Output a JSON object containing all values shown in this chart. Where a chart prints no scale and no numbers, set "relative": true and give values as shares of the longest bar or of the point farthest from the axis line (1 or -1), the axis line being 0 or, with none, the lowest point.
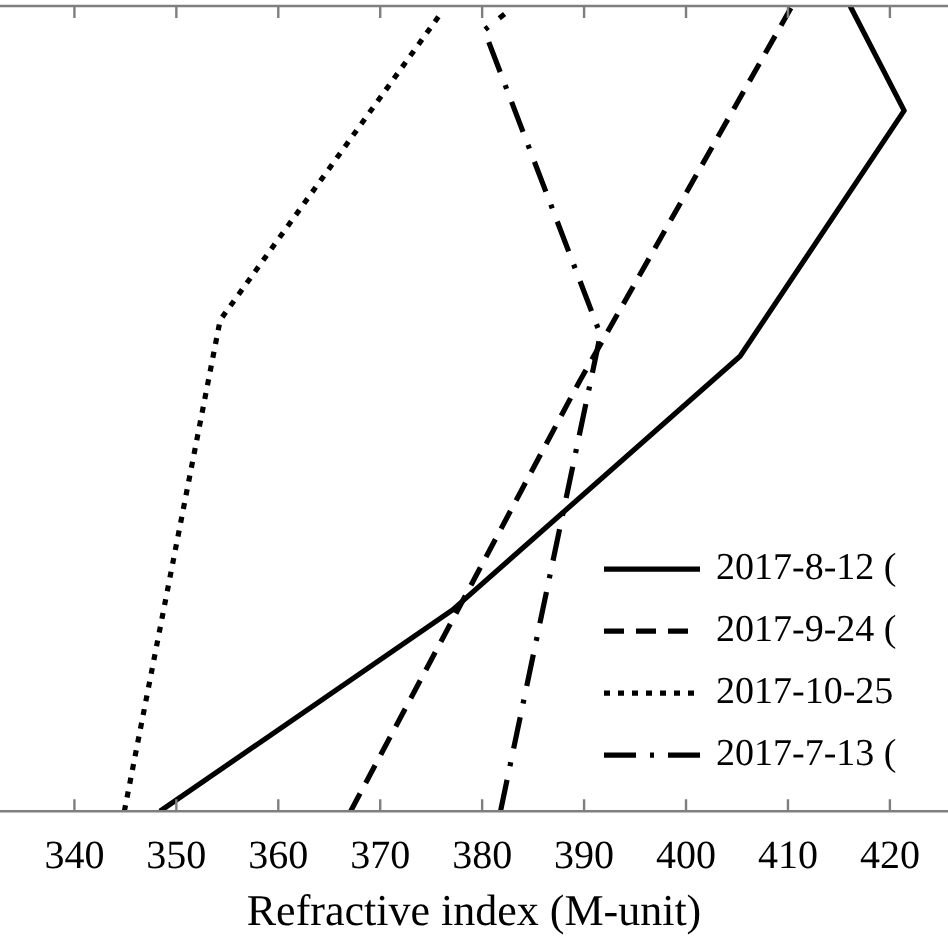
{
  "chart_data": {
    "type": "line",
    "relative": true,
    "xlabel": "Refractive index (M-unit)",
    "xlim": [
      332.7,
      425.7
    ],
    "xticks": [
      340,
      350,
      360,
      370,
      380,
      390,
      400,
      410,
      420
    ],
    "legend": "bottom right",
    "series": [
      {
        "name": "2017-8-12 (",
        "color": "#000000",
        "line_style": "solid",
        "x": [
          348.4,
          377.1,
          405.3,
          421.4,
          416.1
        ],
        "values": [
          0,
          0.25,
          0.565,
          0.87,
          1.0
        ]
      },
      {
        "name": "2017-9-24 (",
        "color": "#000000",
        "line_style": "dashed",
        "x": [
          367.1,
          389.6,
          410.4
        ],
        "values": [
          0,
          0.535,
          1.0
        ]
      },
      {
        "name": "2017-10-25",
        "color": "#000000",
        "line_style": "dotted",
        "x": [
          344.9,
          354.3,
          375.9
        ],
        "values": [
          0,
          0.61,
          0.99
        ]
      },
      {
        "name": "2017-7-13 (",
        "color": "#000000",
        "line_style": "dashdot",
        "x": [
          381.8,
          391.6,
          380.2,
          382.2
        ],
        "values": [
          0,
          0.592,
          0.97,
          0.99
        ]
      }
    ]
  }
}
